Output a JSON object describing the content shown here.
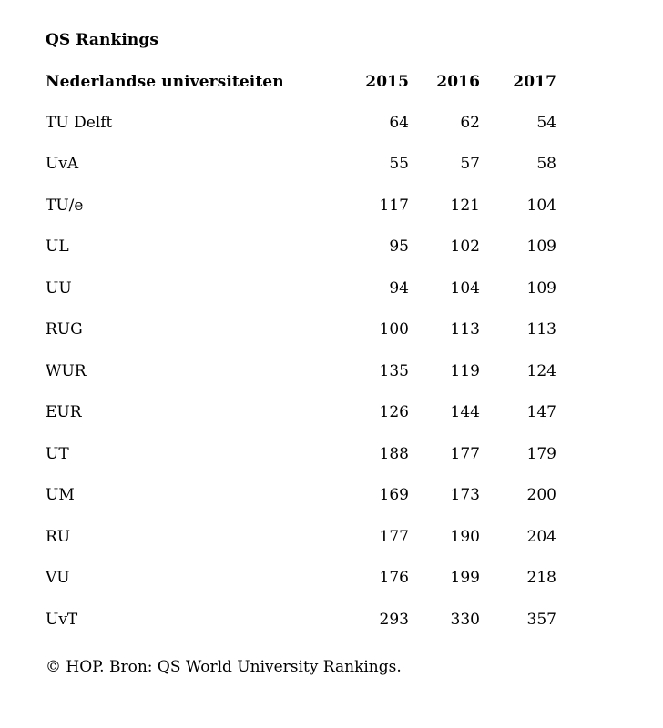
{
  "page": {
    "title": "QS Rankings",
    "source_note": "© HOP. Bron: QS World University Rankings."
  },
  "table": {
    "header": {
      "name_label": "Nederlandse universiteiten",
      "years": [
        "2015",
        "2016",
        "2017"
      ]
    },
    "rows": [
      {
        "name": "TU Delft",
        "values": [
          64,
          62,
          54
        ]
      },
      {
        "name": "UvA",
        "values": [
          55,
          57,
          58
        ]
      },
      {
        "name": "TU/e",
        "values": [
          117,
          121,
          104
        ]
      },
      {
        "name": "UL",
        "values": [
          95,
          102,
          109
        ]
      },
      {
        "name": "UU",
        "values": [
          94,
          104,
          109
        ]
      },
      {
        "name": "RUG",
        "values": [
          100,
          113,
          113
        ]
      },
      {
        "name": "WUR",
        "values": [
          135,
          119,
          124
        ]
      },
      {
        "name": "EUR",
        "values": [
          126,
          144,
          147
        ]
      },
      {
        "name": "UT",
        "values": [
          188,
          177,
          179
        ]
      },
      {
        "name": "UM",
        "values": [
          169,
          173,
          200
        ]
      },
      {
        "name": "RU",
        "values": [
          177,
          190,
          204
        ]
      },
      {
        "name": "VU",
        "values": [
          176,
          199,
          218
        ]
      },
      {
        "name": "UvT",
        "values": [
          293,
          330,
          357
        ]
      }
    ]
  },
  "colors": {
    "text": "#000000",
    "background": "#ffffff"
  },
  "chart_data": {
    "type": "table",
    "title": "QS Rankings",
    "row_header_label": "Nederlandse universiteiten",
    "categories": [
      "TU Delft",
      "UvA",
      "TU/e",
      "UL",
      "UU",
      "RUG",
      "WUR",
      "EUR",
      "UT",
      "UM",
      "RU",
      "VU",
      "UvT"
    ],
    "series": [
      {
        "name": "2015",
        "values": [
          64,
          55,
          117,
          95,
          94,
          100,
          135,
          126,
          188,
          169,
          177,
          176,
          293
        ]
      },
      {
        "name": "2016",
        "values": [
          62,
          57,
          121,
          102,
          104,
          113,
          119,
          144,
          177,
          173,
          190,
          199,
          330
        ]
      },
      {
        "name": "2017",
        "values": [
          54,
          58,
          104,
          109,
          109,
          113,
          124,
          147,
          179,
          200,
          204,
          218,
          357
        ]
      }
    ],
    "source_note": "© HOP. Bron: QS World University Rankings.",
    "legend_position": "none",
    "grid": false
  }
}
